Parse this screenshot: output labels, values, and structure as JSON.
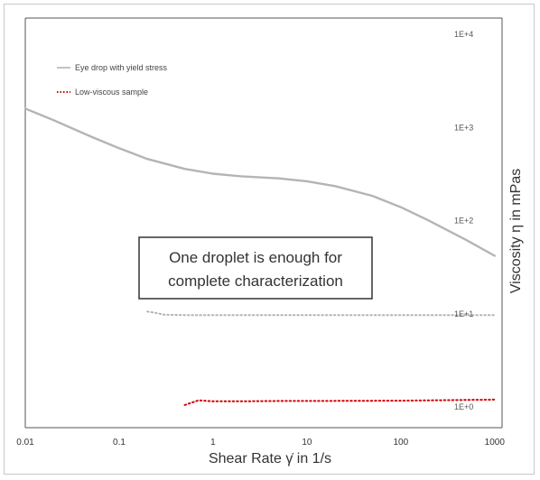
{
  "chart_data": {
    "type": "line",
    "xscale": "log",
    "yscale": "log",
    "xlim": [
      0.01,
      1200
    ],
    "ylim": [
      0.6,
      15000
    ],
    "x_tick_labels": [
      "0.01",
      "0.1",
      "1",
      "10",
      "100",
      "1000"
    ],
    "x_ticks": [
      0.01,
      0.1,
      1,
      10,
      100,
      1000
    ],
    "y_tick_labels": [
      "1E+0",
      "1E+1",
      "1E+2",
      "1E+3",
      "1E+4"
    ],
    "y_ticks": [
      1,
      10,
      100,
      1000,
      10000
    ],
    "xlabel": "Shear Rate γ̇ in 1/s",
    "ylabel": "Viscosity η in mPas",
    "grid": false,
    "legend_position": "top-left",
    "annotation": "One droplet is enough for complete characterization",
    "annotation_lines": [
      "One droplet is enough for",
      "complete characterization"
    ],
    "series": [
      {
        "name": "Eye drop with yield stress",
        "color": "#b4b4b4",
        "style": "solid",
        "x": [
          0.01,
          0.02,
          0.05,
          0.1,
          0.2,
          0.5,
          1,
          2,
          5,
          10,
          20,
          50,
          100,
          200,
          500,
          1000
        ],
        "y": [
          1600,
          1200,
          800,
          600,
          460,
          360,
          320,
          300,
          285,
          265,
          235,
          185,
          140,
          100,
          62,
          42
        ]
      },
      {
        "name": "Low-viscous sample",
        "color": "#d40000",
        "style": "dotted",
        "x": [
          0.5,
          0.7,
          1,
          2,
          5,
          10,
          100,
          1000
        ],
        "y": [
          1.05,
          1.18,
          1.15,
          1.15,
          1.16,
          1.16,
          1.17,
          1.2
        ]
      },
      {
        "name": "",
        "color": "#b4b4b4",
        "style": "dotted",
        "x": [
          0.2,
          0.25,
          0.3,
          0.5,
          1,
          10,
          100,
          1000
        ],
        "y": [
          10.6,
          10.2,
          9.8,
          9.7,
          9.7,
          9.7,
          9.7,
          9.7
        ]
      }
    ]
  }
}
